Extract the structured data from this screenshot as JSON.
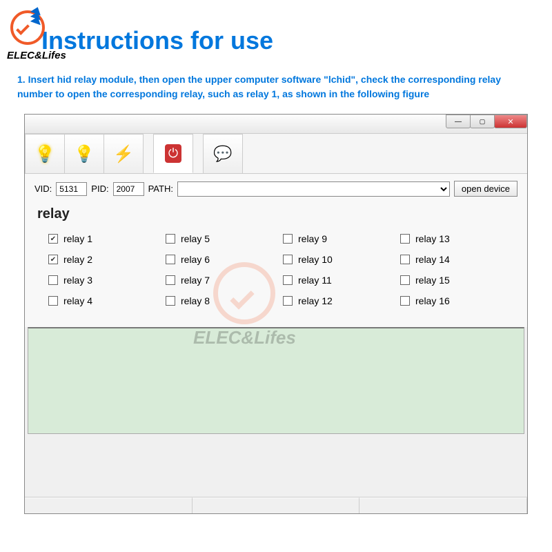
{
  "brand": {
    "name": "ELEC&Lifes",
    "logo_color_primary": "#f05a28",
    "logo_color_secondary": "#0066cc"
  },
  "page": {
    "title": "Instructions for use",
    "title_color": "#0077dd",
    "instruction_text": "1. Insert hid relay module, then open the upper computer software \"lchid\", check the corresponding relay number to open the corresponding relay, such as relay 1, as shown in the following figure"
  },
  "window": {
    "toolbar": {
      "icons": [
        "bulb-lit",
        "bulb-off",
        "thunder",
        "power",
        "info"
      ]
    },
    "device": {
      "vid_label": "VID:",
      "vid_value": "5131",
      "pid_label": "PID:",
      "pid_value": "2007",
      "path_label": "PATH:",
      "path_value": "",
      "open_button": "open device"
    },
    "relay": {
      "section_title": "relay",
      "items": [
        {
          "label": "relay 1",
          "checked": true
        },
        {
          "label": "relay 2",
          "checked": true
        },
        {
          "label": "relay 3",
          "checked": false
        },
        {
          "label": "relay 4",
          "checked": false
        },
        {
          "label": "relay 5",
          "checked": false
        },
        {
          "label": "relay 6",
          "checked": false
        },
        {
          "label": "relay 7",
          "checked": false
        },
        {
          "label": "relay 8",
          "checked": false
        },
        {
          "label": "relay 9",
          "checked": false
        },
        {
          "label": "relay 10",
          "checked": false
        },
        {
          "label": "relay 11",
          "checked": false
        },
        {
          "label": "relay 12",
          "checked": false
        },
        {
          "label": "relay 13",
          "checked": false
        },
        {
          "label": "relay 14",
          "checked": false
        },
        {
          "label": "relay 15",
          "checked": false
        },
        {
          "label": "relay 16",
          "checked": false
        }
      ]
    },
    "output_bg": "#d8ebd8"
  },
  "watermark_text": "ELEC&Lifes"
}
